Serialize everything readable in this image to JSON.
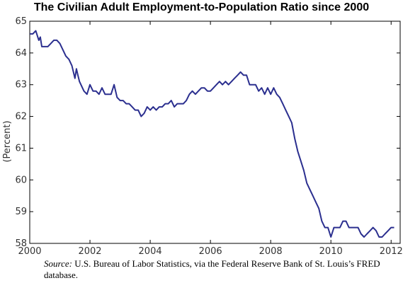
{
  "title": "The Civilian Adult Employment-to-Population Ratio since 2000",
  "source_label": "Source:",
  "source_text": "U.S. Bureau of Labor Statistics, via the Federal Reserve Bank of St. Louis’s FRED database.",
  "chart_data": {
    "type": "line",
    "title": "The Civilian Adult Employment-to-Population Ratio since 2000",
    "xlabel": "",
    "ylabel": "(Percent)",
    "xlim": [
      2000,
      2012.3
    ],
    "ylim": [
      58,
      65
    ],
    "x_ticks": [
      "2000",
      "2002",
      "2004",
      "2006",
      "2008",
      "2010",
      "2012"
    ],
    "y_ticks": [
      "58",
      "59",
      "60",
      "61",
      "62",
      "63",
      "64",
      "65"
    ],
    "grid": false,
    "line_color": "#2b2f8f",
    "series": [
      {
        "x": [
          2000.0,
          2000.1,
          2000.2,
          2000.3,
          2000.35,
          2000.4,
          2000.5,
          2000.55,
          2000.6,
          2000.7,
          2000.8,
          2000.9,
          2001.0,
          2001.1,
          2001.2,
          2001.3,
          2001.4,
          2001.5,
          2001.55,
          2001.6,
          2001.65,
          2001.7,
          2001.8,
          2001.9,
          2002.0,
          2002.1,
          2002.2,
          2002.3,
          2002.4,
          2002.5,
          2002.6,
          2002.7,
          2002.8,
          2002.9,
          2003.0,
          2003.1,
          2003.2,
          2003.3,
          2003.4,
          2003.5,
          2003.6,
          2003.7,
          2003.8,
          2003.9,
          2004.0,
          2004.1,
          2004.2,
          2004.3,
          2004.4,
          2004.5,
          2004.6,
          2004.7,
          2004.8,
          2004.9,
          2005.0,
          2005.1,
          2005.2,
          2005.3,
          2005.4,
          2005.5,
          2005.6,
          2005.7,
          2005.8,
          2005.9,
          2006.0,
          2006.1,
          2006.2,
          2006.3,
          2006.4,
          2006.5,
          2006.6,
          2006.7,
          2006.8,
          2006.9,
          2007.0,
          2007.1,
          2007.2,
          2007.3,
          2007.4,
          2007.5,
          2007.6,
          2007.7,
          2007.8,
          2007.9,
          2008.0,
          2008.1,
          2008.2,
          2008.3,
          2008.4,
          2008.5,
          2008.6,
          2008.7,
          2008.8,
          2008.9,
          2009.0,
          2009.1,
          2009.2,
          2009.3,
          2009.4,
          2009.5,
          2009.6,
          2009.7,
          2009.8,
          2009.9,
          2010.0,
          2010.1,
          2010.2,
          2010.3,
          2010.4,
          2010.5,
          2010.6,
          2010.7,
          2010.8,
          2010.9,
          2011.0,
          2011.1,
          2011.2,
          2011.3,
          2011.4,
          2011.5,
          2011.6,
          2011.7,
          2011.8,
          2011.9,
          2012.0,
          2012.1
        ],
        "values": [
          64.6,
          64.6,
          64.7,
          64.4,
          64.5,
          64.2,
          64.2,
          64.2,
          64.2,
          64.3,
          64.4,
          64.4,
          64.3,
          64.1,
          63.9,
          63.8,
          63.6,
          63.2,
          63.5,
          63.3,
          63.1,
          63.0,
          62.8,
          62.7,
          63.0,
          62.8,
          62.8,
          62.7,
          62.9,
          62.7,
          62.7,
          62.7,
          63.0,
          62.6,
          62.5,
          62.5,
          62.4,
          62.4,
          62.3,
          62.2,
          62.2,
          62.0,
          62.1,
          62.3,
          62.2,
          62.3,
          62.2,
          62.3,
          62.3,
          62.4,
          62.4,
          62.5,
          62.3,
          62.4,
          62.4,
          62.4,
          62.5,
          62.7,
          62.8,
          62.7,
          62.8,
          62.9,
          62.9,
          62.8,
          62.8,
          62.9,
          63.0,
          63.1,
          63.0,
          63.1,
          63.0,
          63.1,
          63.2,
          63.3,
          63.4,
          63.3,
          63.3,
          63.0,
          63.0,
          63.0,
          62.8,
          62.9,
          62.7,
          62.9,
          62.7,
          62.9,
          62.7,
          62.6,
          62.4,
          62.2,
          62.0,
          61.8,
          61.3,
          60.9,
          60.6,
          60.3,
          59.9,
          59.7,
          59.5,
          59.3,
          59.1,
          58.7,
          58.5,
          58.5,
          58.2,
          58.5,
          58.5,
          58.5,
          58.7,
          58.7,
          58.5,
          58.5,
          58.5,
          58.5,
          58.3,
          58.2,
          58.3,
          58.4,
          58.5,
          58.4,
          58.2,
          58.2,
          58.3,
          58.4,
          58.5,
          58.5
        ]
      }
    ]
  }
}
